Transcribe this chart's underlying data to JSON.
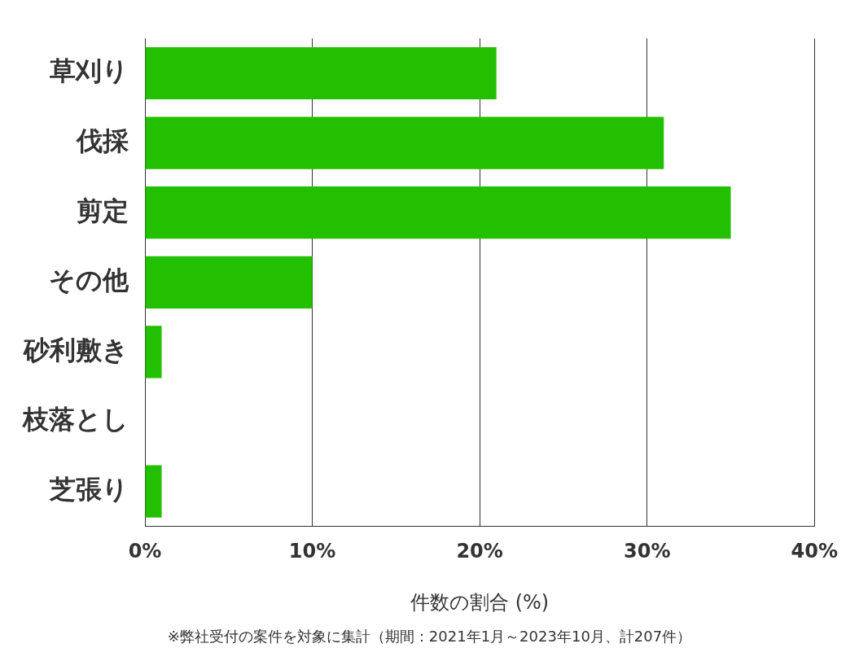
{
  "chart_data": {
    "type": "bar",
    "orientation": "horizontal",
    "categories": [
      "草刈り",
      "伐採",
      "剪定",
      "その他",
      "砂利敷き",
      "枝落とし",
      "芝張り"
    ],
    "values": [
      21,
      31,
      35,
      10,
      1,
      0,
      1
    ],
    "color": "#22c000",
    "xlabel": "件数の割合 (%)",
    "xlim": [
      0,
      40
    ],
    "xticks": [
      {
        "value": 0,
        "label": "0%"
      },
      {
        "value": 10,
        "label": "10%"
      },
      {
        "value": 20,
        "label": "20%"
      },
      {
        "value": 30,
        "label": "30%"
      },
      {
        "value": 40,
        "label": "40%"
      }
    ],
    "grid": "x",
    "legend": false,
    "annotations": [
      "※弊社受付の案件を対象に集計（期間：2021年1月～2023年10月、計207件）"
    ]
  }
}
